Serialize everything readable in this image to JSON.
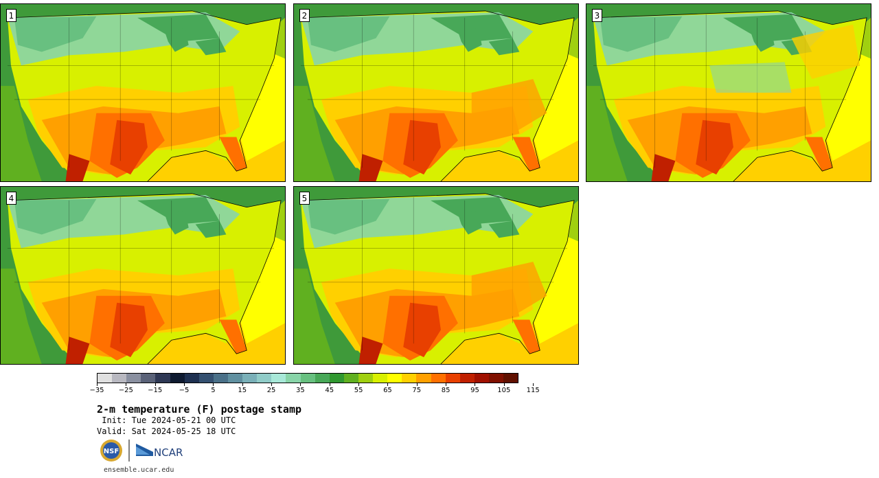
{
  "panels": [
    {
      "label": "1"
    },
    {
      "label": "2"
    },
    {
      "label": "3"
    },
    {
      "label": "4"
    },
    {
      "label": "5"
    }
  ],
  "colorbar": {
    "tick_labels": [
      "−35",
      "−25",
      "−15",
      "−5",
      "5",
      "15",
      "25",
      "35",
      "45",
      "55",
      "65",
      "75",
      "85",
      "95",
      "105",
      "115"
    ],
    "colors": [
      "#e0e0e0",
      "#b8b8c0",
      "#8a90a0",
      "#5a6278",
      "#2e3854",
      "#0e1a30",
      "#1e3050",
      "#345070",
      "#4a7088",
      "#6090a0",
      "#7ab0b8",
      "#90ccc8",
      "#a8e8d8",
      "#88d4a8",
      "#68c080",
      "#48a858",
      "#309830",
      "#60b020",
      "#a0d010",
      "#d8f000",
      "#ffff00",
      "#ffd000",
      "#ffa000",
      "#ff7000",
      "#e84000",
      "#c02000",
      "#a01000",
      "#801000",
      "#601000"
    ]
  },
  "title": "2-m temperature (F) postage stamp",
  "init_line": " Init: Tue 2024-05-21 00 UTC",
  "valid_line": "Valid: Sat 2024-05-25 18 UTC",
  "logo_text": "NCAR",
  "nsf_text": "NSF",
  "url": "ensemble.ucar.edu"
}
